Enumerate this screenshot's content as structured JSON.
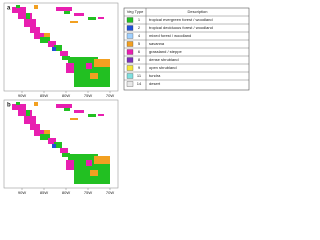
{
  "panels": [
    {
      "label": "a",
      "x_labels": [
        "90W",
        "85W",
        "80W",
        "75W",
        "70W"
      ]
    },
    {
      "label": "b",
      "x_labels": [
        "90W",
        "85W",
        "80W",
        "75W",
        "70W"
      ]
    }
  ],
  "legend": {
    "header": [
      "Veg Type",
      "Description"
    ],
    "rows": [
      {
        "code": "1",
        "description": "tropical evergreen forest / woodland",
        "color": "#22c022"
      },
      {
        "code": "2",
        "description": "tropical deciduous forest / woodland",
        "color": "#1f4fd8"
      },
      {
        "code": "4",
        "description": "mixed forest / woodland",
        "color": "#9fd0ff"
      },
      {
        "code": "5",
        "description": "savanna",
        "color": "#f2a021"
      },
      {
        "code": "6",
        "description": "grassland / steppe",
        "color": "#e81fb0"
      },
      {
        "code": "8",
        "description": "dense shrubland",
        "color": "#7a2fb8"
      },
      {
        "code": "9",
        "description": "open shrubland",
        "color": "#f5e63a"
      },
      {
        "code": "11",
        "description": "tundra",
        "color": "#7fe0e0"
      },
      {
        "code": "14",
        "description": "desert",
        "color": "#e8e8e8"
      }
    ]
  }
}
